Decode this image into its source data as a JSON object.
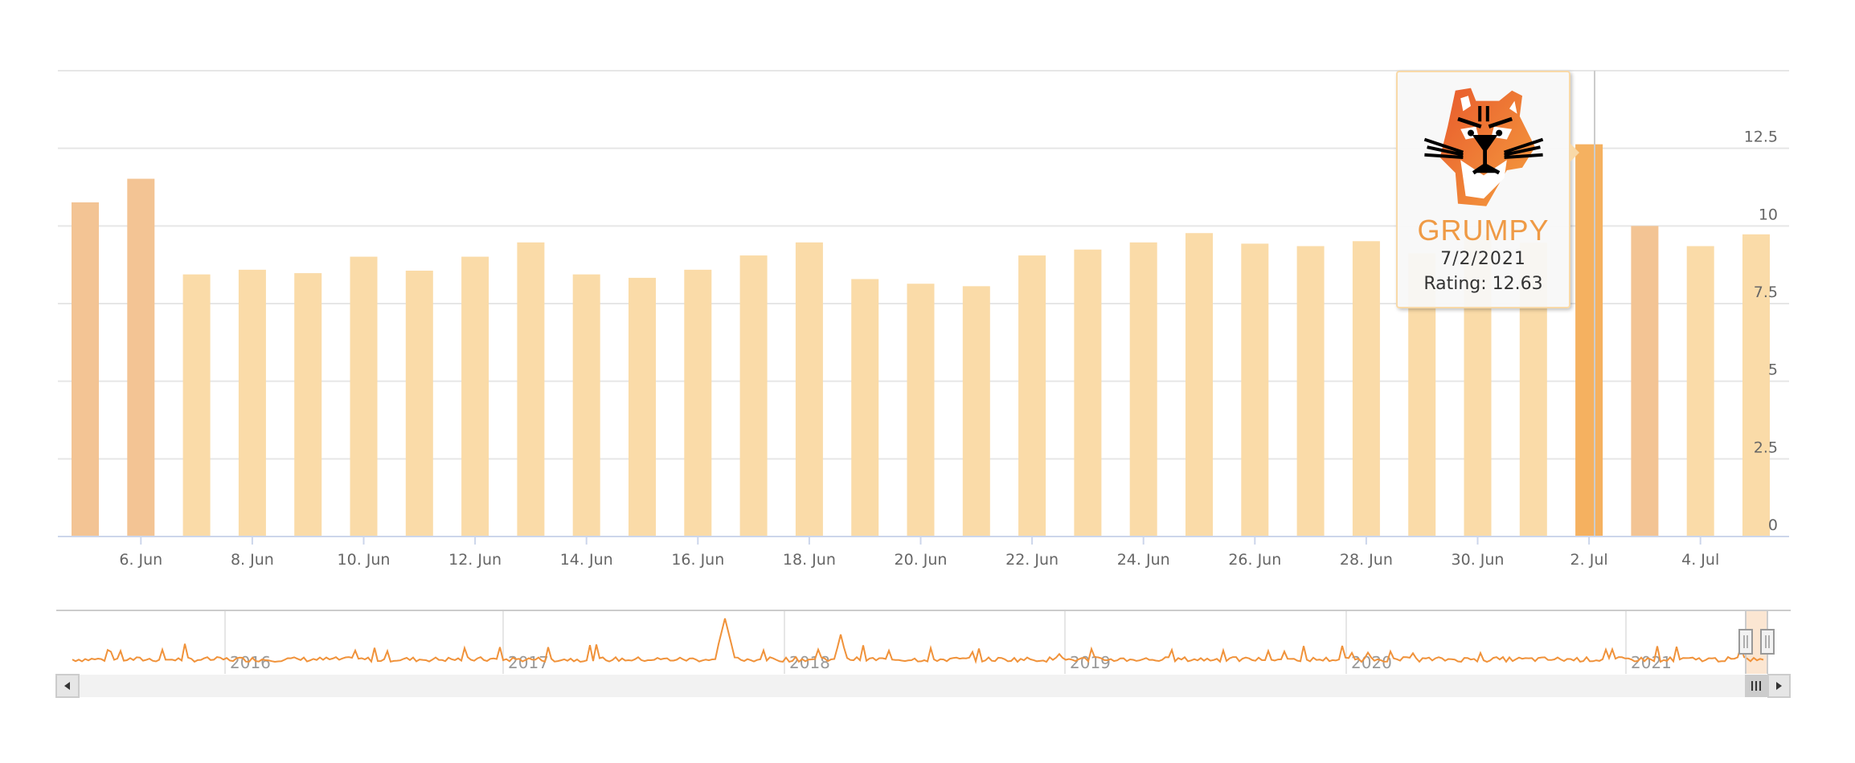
{
  "chart_data": {
    "type": "bar",
    "categories": [
      "5 Jun",
      "6 Jun",
      "7 Jun",
      "8 Jun",
      "9 Jun",
      "10 Jun",
      "11 Jun",
      "12 Jun",
      "13 Jun",
      "14 Jun",
      "15 Jun",
      "16 Jun",
      "17 Jun",
      "18 Jun",
      "19 Jun",
      "20 Jun",
      "21 Jun",
      "22 Jun",
      "23 Jun",
      "24 Jun",
      "25 Jun",
      "26 Jun",
      "27 Jun",
      "28 Jun",
      "29 Jun",
      "30 Jun",
      "1 Jul",
      "2 Jul",
      "3 Jul",
      "4 Jul",
      "5 Jul"
    ],
    "values": [
      10.76,
      11.52,
      8.44,
      8.59,
      8.48,
      9.01,
      8.56,
      9.01,
      9.47,
      8.44,
      8.33,
      8.59,
      9.05,
      9.47,
      8.29,
      8.14,
      8.06,
      9.05,
      9.24,
      9.47,
      9.77,
      9.43,
      9.35,
      9.51,
      9.12,
      9.71,
      9.46,
      12.63,
      10.0,
      9.35,
      9.73
    ],
    "x_tick_labels": [
      "6. Jun",
      "8. Jun",
      "10. Jun",
      "12. Jun",
      "14. Jun",
      "16. Jun",
      "18. Jun",
      "20. Jun",
      "22. Jun",
      "24. Jun",
      "26. Jun",
      "28. Jun",
      "30. Jun",
      "2. Jul",
      "4. Jul"
    ],
    "y_tick_labels": [
      "0",
      "2.5",
      "5",
      "7.5",
      "10",
      "12.5"
    ],
    "ylim": [
      0,
      15
    ],
    "y_axis_side": "right",
    "grid": true,
    "highlighted_index": 27,
    "colors": {
      "normal": "#fadba8",
      "high": "#f3c494",
      "hover": "#f5b160",
      "navigator_line": "#f0923a",
      "navigator_mask": "#fbe6d2"
    },
    "navigator": {
      "year_labels": [
        "2016",
        "2017",
        "2018",
        "2019",
        "2020",
        "2021"
      ]
    }
  },
  "tooltip": {
    "brand": "GRUMPY",
    "logo": "grumpy-tiger-logo",
    "date": "7/2/2021",
    "rating_label": "Rating: 12.63"
  }
}
